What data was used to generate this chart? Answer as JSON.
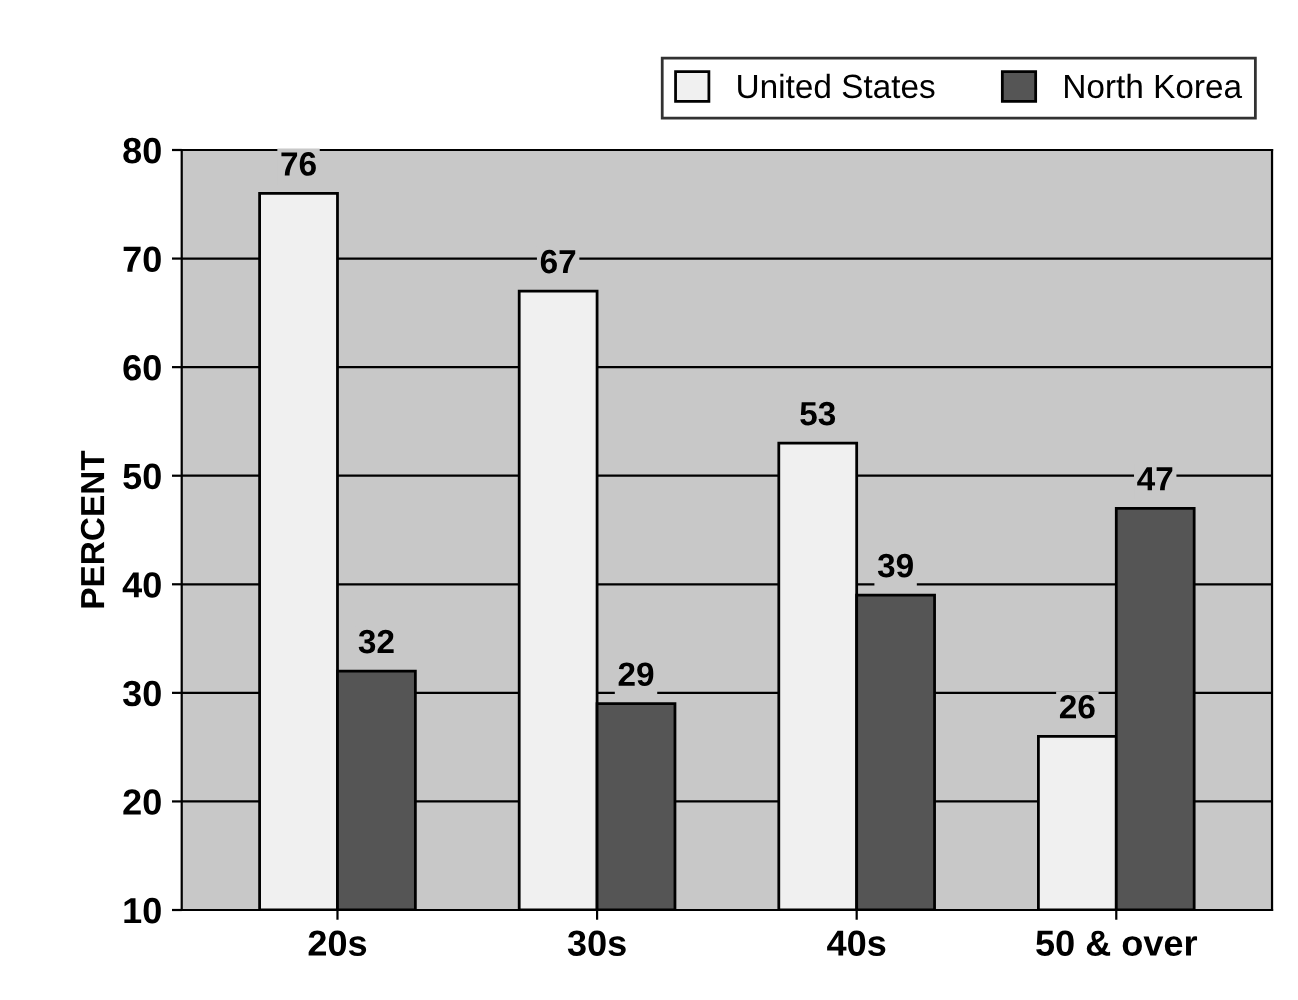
{
  "chart_data": {
    "type": "bar",
    "ylabel": "PERCENT",
    "categories": [
      "20s",
      "30s",
      "40s",
      "50 & over"
    ],
    "series": [
      {
        "name": "United States",
        "color": "#f0f0f0",
        "values": [
          76,
          67,
          53,
          26
        ]
      },
      {
        "name": "North Korea",
        "color": "#555555",
        "values": [
          32,
          29,
          39,
          47
        ]
      }
    ],
    "ylim": [
      10,
      80
    ],
    "yticks": [
      10,
      20,
      30,
      40,
      50,
      60,
      70,
      80
    ],
    "grid": "y",
    "legend": "top right",
    "data_labels": true
  }
}
